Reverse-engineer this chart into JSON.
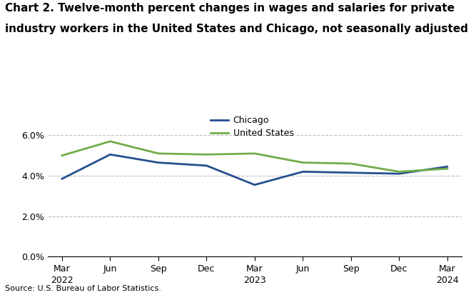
{
  "title_line1": "Chart 2. Twelve-month percent changes in wages and salaries for private",
  "title_line2": "industry workers in the United States and Chicago, not seasonally adjusted",
  "source": "Source: U.S. Bureau of Labor Statistics.",
  "x_labels": [
    "Mar\n2022",
    "Jun",
    "Sep",
    "Dec",
    "Mar\n2023",
    "Jun",
    "Sep",
    "Dec",
    "Mar\n2024"
  ],
  "chicago": [
    3.85,
    5.05,
    4.65,
    4.5,
    3.55,
    4.2,
    4.15,
    4.1,
    4.45
  ],
  "us": [
    5.0,
    5.7,
    5.1,
    5.05,
    5.1,
    4.65,
    4.6,
    4.2,
    4.35
  ],
  "chicago_color": "#254f8f",
  "us_color": "#70ad47",
  "ylim_min": 0,
  "ylim_max": 7.0,
  "yticks": [
    0.0,
    2.0,
    4.0,
    6.0
  ],
  "ytick_labels": [
    "0.0%",
    "2.0%",
    "4.0%",
    "6.0%"
  ],
  "grid_color": "#c0c0c0",
  "background_color": "#ffffff",
  "legend_chicago": "Chicago",
  "legend_us": "United States",
  "title_fontsize": 11,
  "axis_fontsize": 9,
  "legend_fontsize": 9,
  "source_fontsize": 8,
  "line_width": 2.0
}
